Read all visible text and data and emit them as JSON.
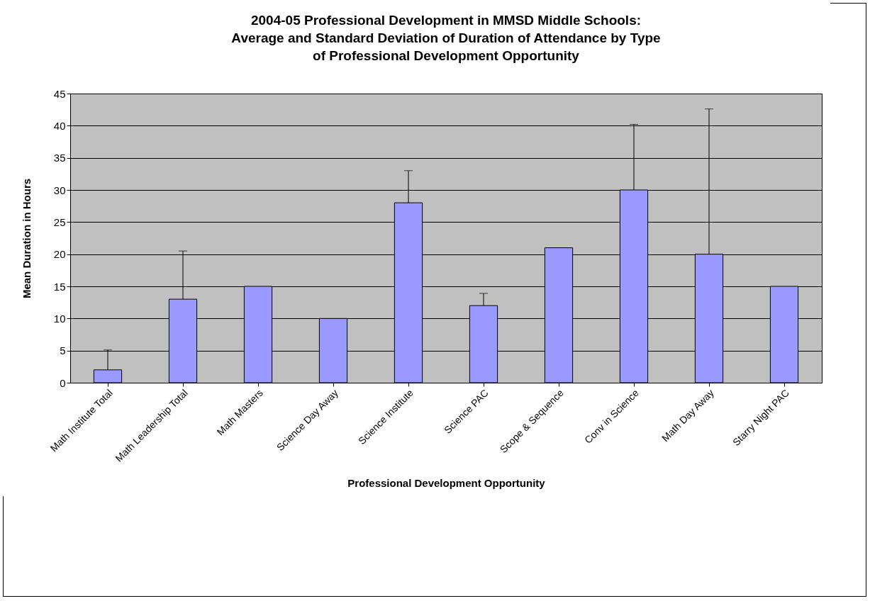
{
  "chart_data": {
    "type": "bar",
    "title": "2004-05 Professional Development in MMSD Middle Schools:\nAverage and Standard Deviation of Duration of Attendance by Type\nof Professional Development Opportunity",
    "xlabel": "Professional Development Opportunity",
    "ylabel": "Mean Duration in Hours",
    "categories": [
      "Math Institute Total",
      "Math Leadership Total",
      "Math Masters",
      "Science Day Away",
      "Science Institute",
      "Science PAC",
      "Scope & Sequence",
      "Conv in Science",
      "Math Day Away",
      "Starry Night PAC"
    ],
    "values": [
      2,
      13,
      15,
      10,
      28,
      12,
      21,
      30,
      20,
      15
    ],
    "errors": [
      [
        2,
        5.1
      ],
      [
        13,
        20.5
      ],
      null,
      null,
      [
        28,
        33
      ],
      [
        12,
        13.9
      ],
      null,
      [
        30,
        40.2
      ],
      [
        20,
        42.6
      ],
      null
    ],
    "color": "#9999ff",
    "ylim": [
      0,
      45
    ],
    "yticks": [
      0,
      5,
      10,
      15,
      20,
      25,
      30,
      35,
      40,
      45
    ],
    "grid": "y"
  }
}
